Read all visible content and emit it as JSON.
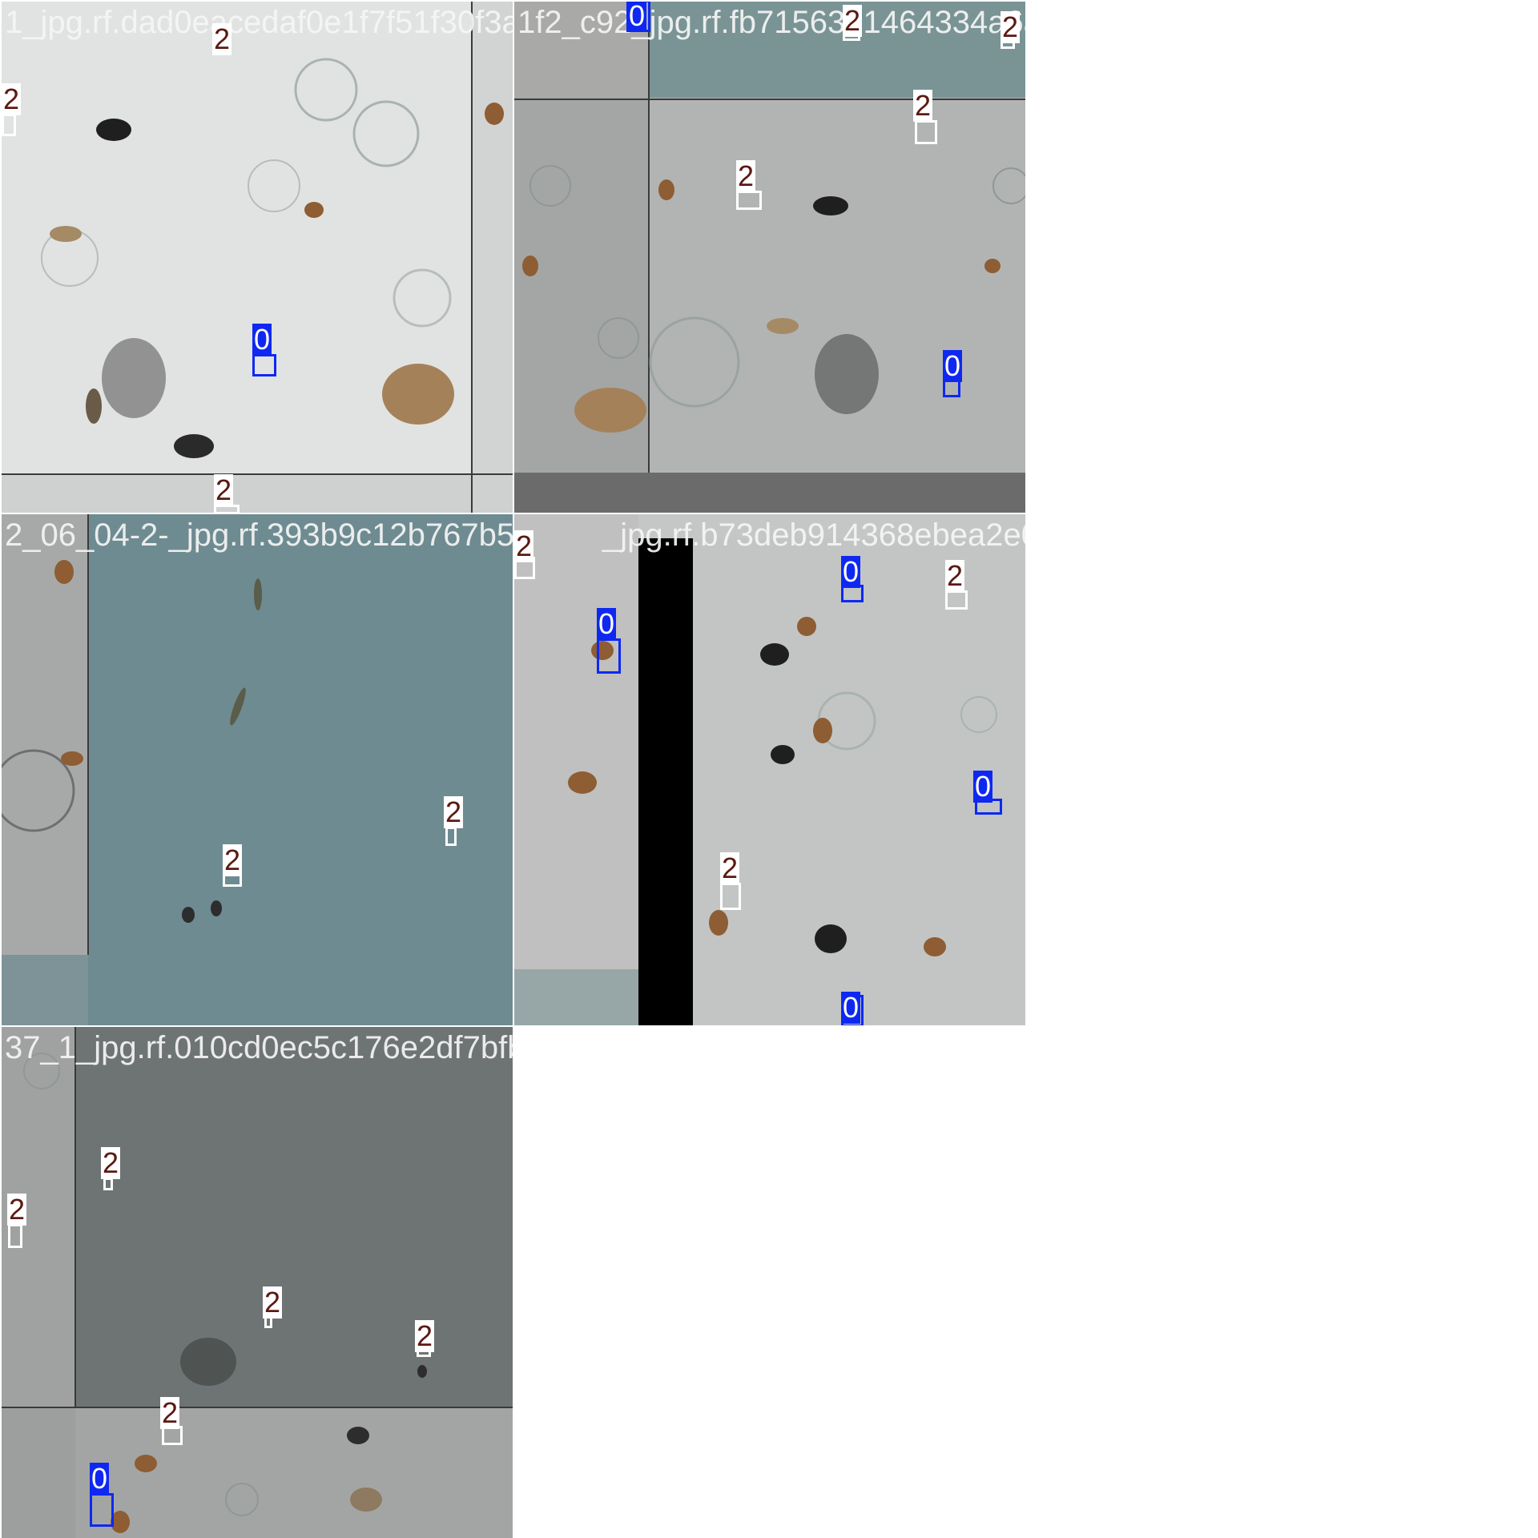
{
  "mosaic": {
    "tiles": [
      {
        "id": "tile-1",
        "filename": "1_jpg.rf.dad0eacedaf0e1f7f51f30f3a4f72d4e",
        "detections": [
          {
            "cls": "2",
            "label": "2"
          },
          {
            "cls": "2",
            "label": "2"
          },
          {
            "cls": "0",
            "label": "0"
          },
          {
            "cls": "2",
            "label": "2"
          }
        ]
      },
      {
        "id": "tile-2",
        "filename": "1f2_c92_jpg.rf.fb7156391464334a6a0cb36aa6d4",
        "detections": [
          {
            "cls": "0",
            "label": "0"
          },
          {
            "cls": "2",
            "label": "2"
          },
          {
            "cls": "2",
            "label": "2"
          },
          {
            "cls": "2",
            "label": "2"
          },
          {
            "cls": "2",
            "label": "2"
          },
          {
            "cls": "0",
            "label": "0"
          }
        ]
      },
      {
        "id": "tile-3",
        "filename": "2_06_04-2-_jpg.rf.393b9c12b767b5c912e34",
        "detections": [
          {
            "cls": "2",
            "label": "2"
          },
          {
            "cls": "2",
            "label": "2"
          }
        ]
      },
      {
        "id": "tile-4",
        "filename": "_jpg.rf.b73deb914368ebea2e0edb4753f4",
        "detections": [
          {
            "cls": "2",
            "label": "2"
          },
          {
            "cls": "0",
            "label": "0"
          },
          {
            "cls": "0",
            "label": "0"
          },
          {
            "cls": "2",
            "label": "2"
          },
          {
            "cls": "0",
            "label": "0"
          },
          {
            "cls": "2",
            "label": "2"
          },
          {
            "cls": "0",
            "label": "0"
          }
        ]
      },
      {
        "id": "tile-5",
        "filename": "37_1_jpg.rf.010cd0ec5c176e2df7bfb8dffe23",
        "detections": [
          {
            "cls": "2",
            "label": "2"
          },
          {
            "cls": "2",
            "label": "2"
          },
          {
            "cls": "2",
            "label": "2"
          },
          {
            "cls": "2",
            "label": "2"
          },
          {
            "cls": "2",
            "label": "2"
          },
          {
            "cls": "0",
            "label": "0"
          }
        ]
      }
    ],
    "colors": {
      "class_0": "#0e28f2",
      "class_2": "#ffffff",
      "class_2_text": "#5a1a12"
    }
  }
}
